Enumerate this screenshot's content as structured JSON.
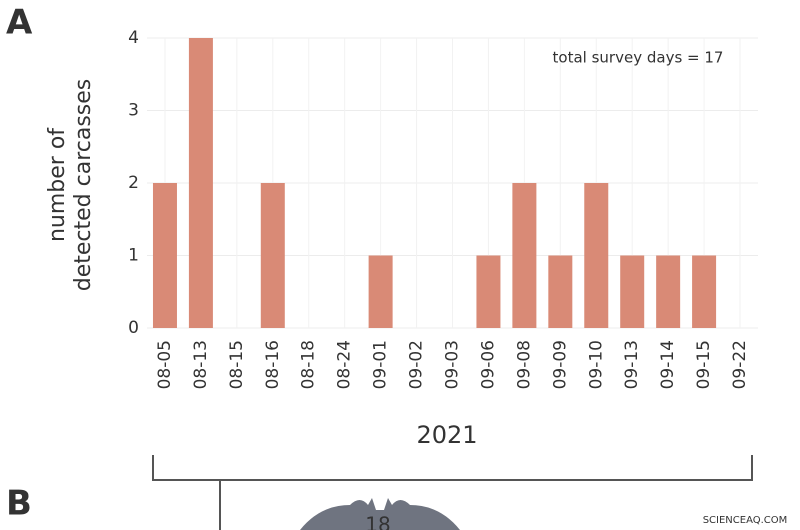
{
  "panel_a_label": "A",
  "panel_b_label": "B",
  "icon_number": "18",
  "watermark": "SCIENCEAQ.COM",
  "chart_data": {
    "type": "bar",
    "y_label": [
      "number of",
      "detected carcasses"
    ],
    "x_label": "2021",
    "annotation": "total survey days = 17",
    "categories": [
      "08-05",
      "08-13",
      "08-15",
      "08-16",
      "08-18",
      "08-24",
      "09-01",
      "09-02",
      "09-03",
      "09-06",
      "09-08",
      "09-09",
      "09-10",
      "09-13",
      "09-14",
      "09-15",
      "09-22"
    ],
    "values": [
      2,
      4,
      0,
      2,
      0,
      0,
      1,
      0,
      0,
      1,
      2,
      1,
      2,
      1,
      1,
      1,
      0
    ],
    "color": "#d98a76",
    "ylim": [
      0,
      4
    ],
    "yticks": [
      0,
      1,
      2,
      3,
      4
    ],
    "grid": true
  }
}
